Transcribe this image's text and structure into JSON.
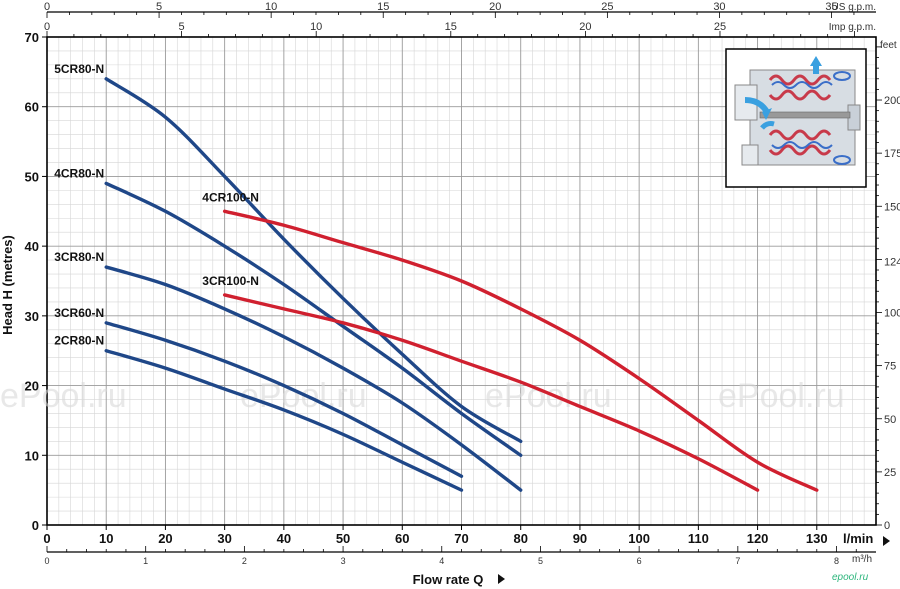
{
  "chart_data": {
    "type": "line",
    "xlabel": "Flow rate  Q",
    "ylabel": "Head H (metres)",
    "x_unit": "l/min",
    "xlim": [
      0,
      140
    ],
    "ylim": [
      0,
      70
    ],
    "x_ticks": [
      0,
      10,
      20,
      30,
      40,
      50,
      60,
      70,
      80,
      90,
      100,
      110,
      120,
      130
    ],
    "y_ticks": [
      0,
      10,
      20,
      30,
      40,
      50,
      60,
      70
    ],
    "grid": true,
    "secondary_axes": {
      "m3h": {
        "unit": "m³/h",
        "ticks": [
          0,
          1,
          2,
          3,
          4,
          5,
          6,
          7,
          8
        ]
      },
      "us_gpm": {
        "unit": "US g.p.m.",
        "ticks": [
          0,
          5,
          10,
          15,
          20,
          25,
          30,
          35
        ]
      },
      "imp_gpm": {
        "unit": "Imp g.p.m.",
        "ticks": [
          0,
          5,
          10,
          15,
          20,
          25
        ]
      },
      "feet": {
        "unit": "feet",
        "ticks": [
          0,
          25,
          50,
          75,
          100,
          124,
          150,
          175,
          200
        ]
      }
    },
    "series": [
      {
        "name": "5CR80-N",
        "color": "#1f4788",
        "x": [
          10,
          20,
          30,
          40,
          50,
          60,
          70,
          80
        ],
        "y": [
          64,
          58.5,
          50,
          41,
          32.5,
          24.5,
          17,
          12
        ]
      },
      {
        "name": "4CR80-N",
        "color": "#1f4788",
        "x": [
          10,
          20,
          30,
          40,
          50,
          60,
          70,
          80
        ],
        "y": [
          49,
          45,
          40,
          34.5,
          28.5,
          22.5,
          16,
          10
        ]
      },
      {
        "name": "3CR80-N",
        "color": "#1f4788",
        "x": [
          10,
          20,
          30,
          40,
          50,
          60,
          70,
          80
        ],
        "y": [
          37,
          34.5,
          31,
          27,
          22.5,
          17.5,
          11.5,
          5
        ]
      },
      {
        "name": "3CR60-N",
        "color": "#1f4788",
        "x": [
          10,
          20,
          30,
          40,
          50,
          60,
          70
        ],
        "y": [
          29,
          26.5,
          23.5,
          20,
          16,
          11.5,
          7
        ]
      },
      {
        "name": "2CR80-N",
        "color": "#1f4788",
        "x": [
          10,
          20,
          30,
          40,
          50,
          60,
          70
        ],
        "y": [
          25,
          22.5,
          19.5,
          16.5,
          13,
          9,
          5
        ]
      },
      {
        "name": "4CR100-N",
        "color": "#d0202f",
        "x": [
          30,
          40,
          50,
          60,
          70,
          80,
          90,
          100,
          110,
          120,
          130
        ],
        "y": [
          45,
          43,
          40.5,
          38,
          35,
          31,
          26.5,
          21,
          15,
          9,
          5
        ]
      },
      {
        "name": "3CR100-N",
        "color": "#d0202f",
        "x": [
          30,
          40,
          50,
          60,
          70,
          80,
          90,
          100,
          110,
          120
        ],
        "y": [
          33,
          31,
          29,
          26.5,
          23.5,
          20.5,
          17,
          13.5,
          9.5,
          5
        ]
      }
    ],
    "watermark": "ePool.ru",
    "credit": "epool.ru"
  }
}
